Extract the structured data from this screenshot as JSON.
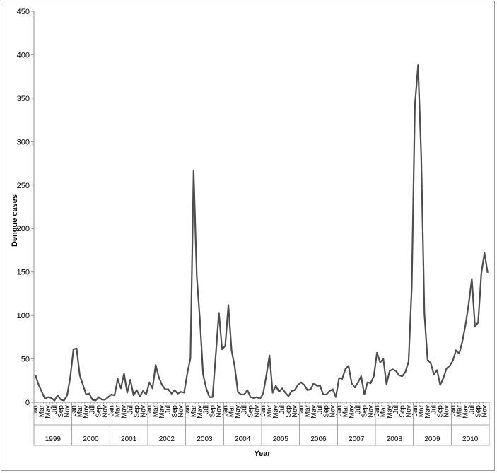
{
  "chart_data": {
    "type": "line",
    "title": "",
    "xlabel": "Year",
    "ylabel": "Dengue cases",
    "ylim": [
      0,
      450
    ],
    "yticks": [
      0,
      50,
      100,
      150,
      200,
      250,
      300,
      350,
      400,
      450
    ],
    "grid": false,
    "legend": "none",
    "line_color": "#4d4d4d",
    "month_tick_labels": [
      "Jan",
      "Mar",
      "May",
      "Jul",
      "Sep",
      "Nov"
    ],
    "years": [
      "1999",
      "2000",
      "2001",
      "2002",
      "2003",
      "2004",
      "2005",
      "2006",
      "2007",
      "2008",
      "2009",
      "2010"
    ],
    "series": [
      {
        "values": [
          31,
          20,
          12,
          4,
          6,
          5,
          2,
          8,
          3,
          2,
          8,
          29,
          61,
          62,
          31,
          20,
          9,
          10,
          3,
          2,
          6,
          3,
          3,
          6,
          9,
          8,
          27,
          16,
          33,
          11,
          26,
          8,
          14,
          7,
          13,
          9,
          23,
          16,
          43,
          29,
          20,
          15,
          15,
          10,
          14,
          10,
          12,
          11,
          33,
          51,
          267,
          145,
          95,
          32,
          16,
          6,
          6,
          54,
          103,
          61,
          65,
          112,
          60,
          41,
          12,
          9,
          9,
          14,
          6,
          5,
          6,
          4,
          10,
          31,
          54,
          11,
          19,
          12,
          16,
          11,
          7,
          13,
          14,
          20,
          23,
          20,
          14,
          15,
          22,
          19,
          19,
          9,
          9,
          13,
          15,
          6,
          28,
          27,
          38,
          42,
          22,
          17,
          23,
          30,
          9,
          23,
          22,
          30,
          57,
          46,
          50,
          21,
          36,
          38,
          36,
          31,
          30,
          35,
          47,
          133,
          342,
          388,
          282,
          102,
          49,
          45,
          32,
          37,
          20,
          28,
          39,
          42,
          48,
          60,
          56,
          70,
          89,
          113,
          142,
          87,
          92,
          148,
          172,
          149
        ]
      }
    ]
  }
}
